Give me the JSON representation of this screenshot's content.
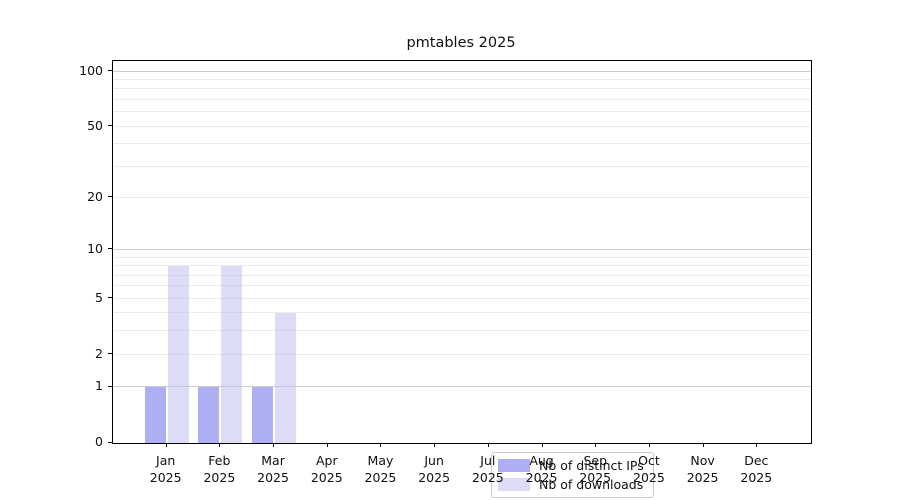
{
  "chart_data": {
    "type": "bar",
    "title": "pmtables 2025",
    "categories": [
      "Jan",
      "Feb",
      "Mar",
      "Apr",
      "May",
      "Jun",
      "Jul",
      "Aug",
      "Sep",
      "Oct",
      "Nov",
      "Dec"
    ],
    "year": "2025",
    "series": [
      {
        "name": "Nb of distinct IPs",
        "color": "rgba(130,130,240,0.65)",
        "values": [
          1,
          1,
          1,
          0,
          0,
          0,
          0,
          0,
          0,
          0,
          0,
          0
        ]
      },
      {
        "name": "Nb of downloads",
        "color": "rgba(185,185,238,0.5)",
        "values": [
          8,
          8,
          4,
          0,
          0,
          0,
          0,
          0,
          0,
          0,
          0,
          0
        ]
      }
    ],
    "y_ticks": [
      0,
      1,
      2,
      5,
      10,
      20,
      50,
      100
    ],
    "y_scale": "log10(1+value)",
    "ylim": [
      0,
      114
    ],
    "grid": "horizontal",
    "grid_major_values": [
      1,
      10,
      100
    ],
    "grid_minor_values": [
      2,
      3,
      4,
      5,
      6,
      7,
      8,
      9,
      20,
      30,
      40,
      50,
      60,
      70,
      80,
      90
    ],
    "legend_position": "lower center inside plot",
    "colors": {
      "grid_major": "#cdcdcd",
      "grid_minor": "#ececec",
      "axis": "#000000",
      "legend_border": "#cccccc"
    }
  }
}
